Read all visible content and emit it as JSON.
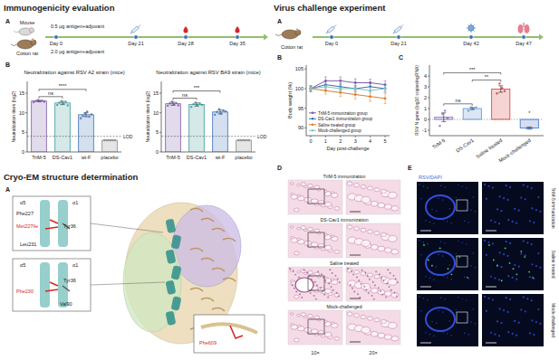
{
  "headings": [
    "Immunogenicity evaluation",
    "Cryo-EM structure determination",
    "Virus challenge experiment"
  ],
  "panel_labels": {
    "immunization_a": "A",
    "immunization_b": "B",
    "structure_a": "A",
    "challenge_a": "A",
    "challenge_b": "B",
    "challenge_c": "C",
    "challenge_d": "D",
    "challenge_e": "E"
  },
  "immunization_timeline": {
    "animals": [
      "Mouse",
      "Cotton rat"
    ],
    "doses": [
      "0.5 μg antigen+adjuvant",
      "2.0 μg antigen+adjuvant"
    ],
    "days": [
      "Day 0",
      "Day 21",
      "Day 28",
      "Day 35"
    ]
  },
  "challenge_timeline": {
    "animal": "Cotton rat",
    "days": [
      "Day 0",
      "Day 21",
      "Day 42",
      "Day 47"
    ]
  },
  "structure": {
    "insets": [
      {
        "labels": [
          {
            "text": "α5"
          },
          {
            "text": "α1"
          },
          {
            "text": "Phe227"
          },
          {
            "text": "Met227Ile",
            "color": "#d62728"
          },
          {
            "text": "Tyr36"
          },
          {
            "text": "Leu231"
          }
        ]
      },
      {
        "labels": [
          {
            "text": "α5"
          },
          {
            "text": "α1"
          },
          {
            "text": "Tyr36"
          },
          {
            "text": "Phe230",
            "color": "#d62728"
          },
          {
            "text": "Val90"
          }
        ]
      },
      {
        "labels": [
          {
            "text": "Phe609",
            "color": "#d62728"
          }
        ]
      }
    ]
  },
  "histology": {
    "rows": [
      "TriM-5 immunization",
      "DS-Cav1 immunization",
      "Saline treated",
      "Mock-challenged"
    ],
    "columns": [
      "10×",
      "20×"
    ]
  },
  "fluorescence": {
    "stain": "RSV/DAPI",
    "rows": [
      "TriM-5 immunization",
      "Saline treated",
      "Mock-challenged"
    ]
  },
  "chart_data": [
    {
      "type": "bar",
      "title": "Neutralization against RSV A2 strain (mice)",
      "y_label": "Neutralization titers (log2)",
      "categories": [
        "TriM-5",
        "DS-Cav1",
        "wt-F",
        "placebo"
      ],
      "values": [
        13.0,
        12.5,
        9.5,
        3.0
      ],
      "errors": [
        0.2,
        0.4,
        0.5,
        0
      ],
      "points": [
        [
          12.7,
          13.0,
          13.2,
          12.9,
          13.1,
          12.8
        ],
        [
          12.0,
          12.6,
          13.0,
          12.3,
          12.8,
          11.9
        ],
        [
          8.6,
          9.2,
          9.8,
          10.3,
          9.0,
          9.6
        ],
        [
          3,
          3,
          3,
          3,
          3,
          3
        ]
      ],
      "colors": [
        "#7d5ba6",
        "#3f9a9a",
        "#3b6fb6",
        "#888888"
      ],
      "ylim": [
        0,
        18
      ],
      "yticks": [
        0,
        5,
        10,
        15
      ],
      "lod": 4,
      "lod_label": "LOD",
      "annotations": [
        {
          "between": [
            "TriM-5",
            "DS-Cav1"
          ],
          "text": "ns"
        },
        {
          "between": [
            "TriM-5",
            "wt-F"
          ],
          "text": "****"
        }
      ]
    },
    {
      "type": "bar",
      "title": "Neutralization against RSV BA9 strain (mice)",
      "y_label": "Neutralization titers (log2)",
      "categories": [
        "TriM-5",
        "DS-Cav1",
        "wt-F",
        "placebo"
      ],
      "values": [
        12.3,
        12.1,
        10.2,
        3.0
      ],
      "errors": [
        0.4,
        0.4,
        0.5,
        0
      ],
      "points": [
        [
          11.8,
          12.4,
          12.8,
          12.1,
          12.5,
          11.9
        ],
        [
          11.5,
          12.2,
          12.6,
          11.9,
          12.4,
          12.0
        ],
        [
          9.5,
          10.2,
          10.9,
          9.8,
          10.6,
          10.4
        ],
        [
          3,
          3,
          3,
          3,
          3,
          3
        ]
      ],
      "colors": [
        "#7d5ba6",
        "#3f9a9a",
        "#3b6fb6",
        "#888888"
      ],
      "ylim": [
        0,
        18
      ],
      "yticks": [
        0,
        5,
        10,
        15
      ],
      "lod": 4,
      "lod_label": "LOD",
      "annotations": [
        {
          "between": [
            "TriM-5",
            "DS-Cav1"
          ],
          "text": "ns"
        },
        {
          "between": [
            "TriM-5",
            "wt-F"
          ],
          "text": "***"
        }
      ]
    },
    {
      "type": "line",
      "x_label": "Day post-challenge",
      "y_label": "Body weight (%)",
      "x": [
        0,
        1,
        2,
        3,
        4,
        5
      ],
      "xlim": [
        -0.3,
        5.3
      ],
      "xticks": [
        0,
        1,
        2,
        3,
        4,
        5
      ],
      "ylim": [
        88,
        106
      ],
      "yticks": [
        90,
        95,
        100,
        105
      ],
      "legend": "lower left",
      "series": [
        {
          "name": "TriM-5 immunization group",
          "color": "#7d5ba6",
          "marker": "circle",
          "values": [
            100,
            102,
            102,
            101.5,
            101.5,
            101
          ],
          "errors": [
            0.8,
            1.0,
            1.0,
            1.0,
            0.9,
            1.0
          ]
        },
        {
          "name": "DS-Cav1 immunization group",
          "color": "#3b6fb6",
          "marker": "circle",
          "values": [
            100,
            101,
            100.5,
            100,
            100.5,
            100
          ],
          "errors": [
            0.6,
            0.8,
            0.9,
            0.8,
            0.8,
            0.9
          ]
        },
        {
          "name": "Saline treated group",
          "color": "#e07b2a",
          "marker": "circle",
          "values": [
            100,
            99.5,
            99,
            98.5,
            98,
            97.5
          ],
          "errors": [
            0.7,
            0.9,
            1.0,
            1.1,
            1.2,
            1.3
          ]
        },
        {
          "name": "Mock-challenged group",
          "color": "#7ec8c0",
          "marker": "circle",
          "values": [
            100,
            100.5,
            100,
            100,
            99.5,
            100
          ],
          "errors": [
            0.5,
            0.7,
            0.7,
            0.8,
            0.8,
            0.8
          ]
        }
      ]
    },
    {
      "type": "bar",
      "y_label": "RSV N gene (log10 copies/ngRNA)",
      "categories": [
        "TriM-5",
        "DS-Cav1",
        "Saline treated",
        "Mock-challenged"
      ],
      "values": [
        0.2,
        1.0,
        2.8,
        -0.8
      ],
      "errors": [
        0.4,
        0.1,
        0.3,
        0.1
      ],
      "points": [
        [
          -0.6,
          0.5,
          0.8,
          0.1
        ],
        [
          0.8,
          1.1,
          1.0,
          1.1
        ],
        [
          2.4,
          3.3,
          2.9,
          2.6
        ],
        [
          -0.8,
          -0.8,
          -0.8
        ]
      ],
      "colors": [
        "#8e6cc0",
        "#5b8fd1",
        "#d83b3b",
        "#3d6fc4"
      ],
      "ylim": [
        -1.5,
        5
      ],
      "yticks": [
        -1,
        0,
        1,
        2,
        3,
        4
      ],
      "annotations": [
        {
          "between": [
            "TriM-5",
            "DS-Cav1"
          ],
          "text": "ns"
        },
        {
          "between": [
            "DS-Cav1",
            "Saline treated"
          ],
          "text": "**"
        },
        {
          "between": [
            "TriM-5",
            "Saline treated"
          ],
          "text": "***"
        },
        {
          "between": [
            "Mock-challenged"
          ],
          "text": "*"
        }
      ]
    }
  ]
}
